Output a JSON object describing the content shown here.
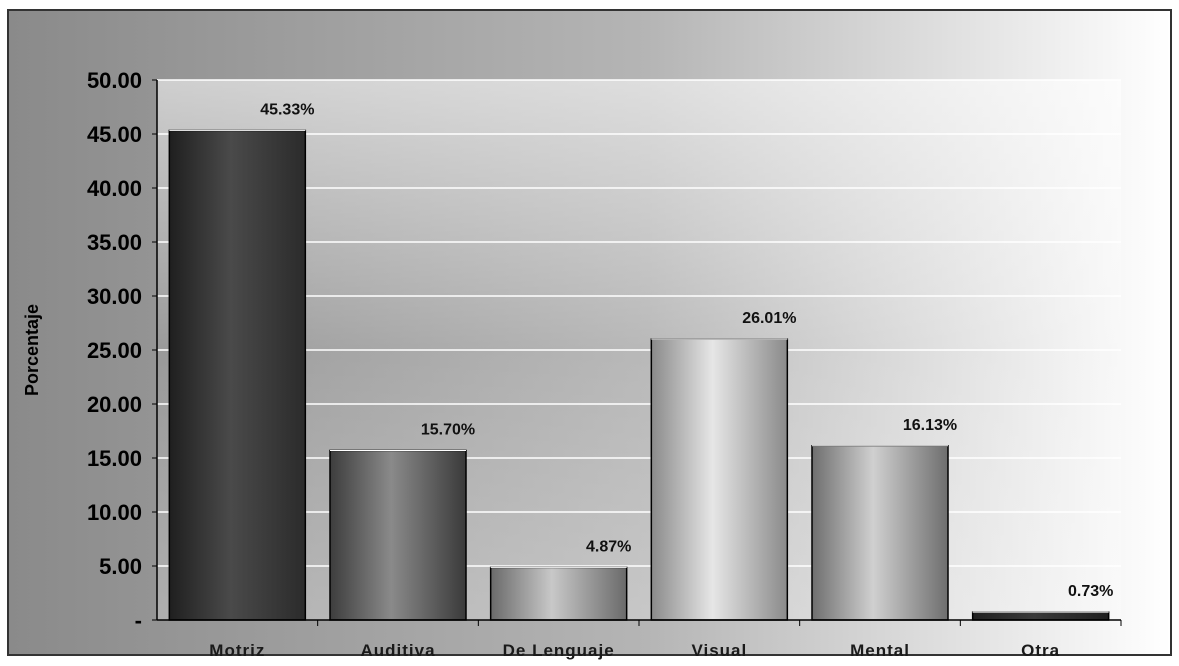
{
  "chart_data": {
    "type": "bar",
    "title": "",
    "xlabel": "",
    "ylabel": "Porcentaje",
    "ylim": [
      0,
      50
    ],
    "yticks": [
      0,
      5,
      10,
      15,
      20,
      25,
      30,
      35,
      40,
      45,
      50
    ],
    "ytick_labels": [
      "-",
      "5.00",
      "10.00",
      "15.00",
      "20.00",
      "25.00",
      "30.00",
      "35.00",
      "40.00",
      "45.00",
      "50.00"
    ],
    "categories": [
      "Motriz",
      "Auditiva",
      "De Lenguaje",
      "Visual",
      "Mental",
      "Otra"
    ],
    "values": [
      45.33,
      15.7,
      4.87,
      26.01,
      16.13,
      0.73
    ],
    "data_labels": [
      "45.33%",
      "15.70%",
      "4.87%",
      "26.01%",
      "16.13%",
      "0.73%"
    ],
    "grid": true,
    "legend": "none"
  }
}
